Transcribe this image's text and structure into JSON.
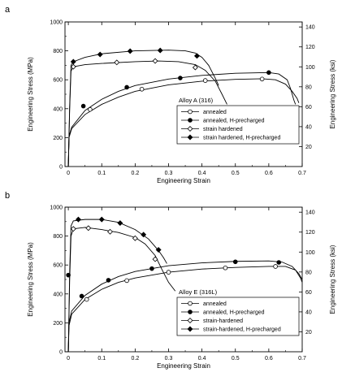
{
  "chart_data": [
    {
      "type": "line",
      "panel_label": "a",
      "xlabel": "Engineering Strain",
      "ylabel": "Engineering Stress (MPa)",
      "y2label": "Engineering Stress (ksi)",
      "xlim": [
        -0.01,
        0.7
      ],
      "ylim": [
        0,
        1000
      ],
      "y2lim": [
        0,
        145.04
      ],
      "xticks": [
        0,
        0.1,
        0.2,
        0.3,
        0.4,
        0.5,
        0.6,
        0.7
      ],
      "yticks": [
        0,
        200,
        400,
        600,
        800,
        1000
      ],
      "y2ticks": [
        20,
        40,
        60,
        80,
        100,
        120,
        140
      ],
      "legend_title": "Alloy A (316)",
      "legend_position": "lower-right",
      "series": [
        {
          "name": "annealed",
          "marker": "open-circle",
          "curve": [
            [
              0,
              0
            ],
            [
              0.002,
              200
            ],
            [
              0.01,
              262
            ],
            [
              0.05,
              360
            ],
            [
              0.1,
              430
            ],
            [
              0.15,
              480
            ],
            [
              0.2,
              520
            ],
            [
              0.3,
              565
            ],
            [
              0.4,
              590
            ],
            [
              0.5,
              603
            ],
            [
              0.58,
              607
            ],
            [
              0.62,
              600
            ],
            [
              0.65,
              570
            ],
            [
              0.67,
              520
            ],
            [
              0.685,
              470
            ],
            [
              0.69,
              440
            ]
          ],
          "markers": [
            [
              0.065,
              395
            ],
            [
              0.22,
              535
            ],
            [
              0.41,
              595
            ],
            [
              0.58,
              605
            ]
          ]
        },
        {
          "name": "annealed, H-precharged",
          "marker": "filled-circle",
          "curve": [
            [
              0,
              0
            ],
            [
              0.002,
              210
            ],
            [
              0.01,
              272
            ],
            [
              0.05,
              388
            ],
            [
              0.1,
              465
            ],
            [
              0.15,
              520
            ],
            [
              0.2,
              560
            ],
            [
              0.3,
              605
            ],
            [
              0.4,
              630
            ],
            [
              0.5,
              645
            ],
            [
              0.6,
              650
            ],
            [
              0.63,
              640
            ],
            [
              0.655,
              600
            ],
            [
              0.665,
              540
            ],
            [
              0.675,
              460
            ],
            [
              0.68,
              430
            ]
          ],
          "markers": [
            [
              0.045,
              418
            ],
            [
              0.175,
              548
            ],
            [
              0.335,
              612
            ],
            [
              0.6,
              650
            ]
          ]
        },
        {
          "name": "strain hardened",
          "marker": "open-diamond",
          "curve": [
            [
              0,
              0
            ],
            [
              0.004,
              400
            ],
            [
              0.008,
              660
            ],
            [
              0.015,
              690
            ],
            [
              0.05,
              705
            ],
            [
              0.1,
              713
            ],
            [
              0.2,
              725
            ],
            [
              0.27,
              730
            ],
            [
              0.33,
              725
            ],
            [
              0.38,
              705
            ],
            [
              0.41,
              665
            ],
            [
              0.44,
              590
            ],
            [
              0.46,
              500
            ],
            [
              0.475,
              430
            ]
          ],
          "markers": [
            [
              0.015,
              690
            ],
            [
              0.145,
              720
            ],
            [
              0.26,
              730
            ],
            [
              0.38,
              685
            ]
          ]
        },
        {
          "name": "strain hardened, H-precharged",
          "marker": "filled-diamond",
          "curve": [
            [
              0,
              0
            ],
            [
              0.004,
              420
            ],
            [
              0.008,
              700
            ],
            [
              0.015,
              725
            ],
            [
              0.05,
              755
            ],
            [
              0.1,
              780
            ],
            [
              0.2,
              800
            ],
            [
              0.3,
              805
            ],
            [
              0.35,
              800
            ],
            [
              0.38,
              785
            ],
            [
              0.4,
              755
            ],
            [
              0.42,
              700
            ],
            [
              0.44,
              610
            ],
            [
              0.45,
              560
            ]
          ],
          "markers": [
            [
              0.015,
              725
            ],
            [
              0.095,
              775
            ],
            [
              0.185,
              798
            ],
            [
              0.275,
              803
            ],
            [
              0.385,
              765
            ]
          ]
        }
      ]
    },
    {
      "type": "line",
      "panel_label": "b",
      "xlabel": "Engineering Strain",
      "ylabel": "Engineering Stress (MPa)",
      "y2label": "Engineering Stress (ksi)",
      "xlim": [
        -0.01,
        0.7
      ],
      "ylim": [
        0,
        1000
      ],
      "y2lim": [
        0,
        145.04
      ],
      "xticks": [
        0,
        0.1,
        0.2,
        0.3,
        0.4,
        0.5,
        0.6,
        0.7
      ],
      "yticks": [
        0,
        200,
        400,
        600,
        800,
        1000
      ],
      "y2ticks": [
        20,
        40,
        60,
        80,
        100,
        120,
        140
      ],
      "legend_title": "Alloy E (316L)",
      "legend_position": "lower-right",
      "series": [
        {
          "name": "annealed",
          "marker": "open-circle",
          "curve": [
            [
              0,
              0
            ],
            [
              0.002,
              180
            ],
            [
              0.01,
              260
            ],
            [
              0.05,
              362
            ],
            [
              0.1,
              432
            ],
            [
              0.15,
              480
            ],
            [
              0.2,
              510
            ],
            [
              0.3,
              550
            ],
            [
              0.4,
              572
            ],
            [
              0.5,
              583
            ],
            [
              0.6,
              590
            ],
            [
              0.65,
              590
            ],
            [
              0.68,
              565
            ],
            [
              0.695,
              510
            ],
            [
              0.7,
              480
            ]
          ],
          "markers": [
            [
              0.055,
              362
            ],
            [
              0.175,
              492
            ],
            [
              0.3,
              550
            ],
            [
              0.47,
              580
            ],
            [
              0.62,
              590
            ]
          ]
        },
        {
          "name": "annealed, H-precharged",
          "marker": "filled-circle",
          "curve": [
            [
              0,
              0
            ],
            [
              0.002,
              200
            ],
            [
              0.01,
              282
            ],
            [
              0.05,
              390
            ],
            [
              0.1,
              468
            ],
            [
              0.15,
              520
            ],
            [
              0.2,
              555
            ],
            [
              0.3,
              595
            ],
            [
              0.4,
              615
            ],
            [
              0.5,
              625
            ],
            [
              0.6,
              628
            ],
            [
              0.64,
              620
            ],
            [
              0.67,
              590
            ],
            [
              0.69,
              540
            ],
            [
              0.7,
              500
            ]
          ],
          "markers": [
            [
              0,
              530
            ],
            [
              0.04,
              385
            ],
            [
              0.12,
              495
            ],
            [
              0.25,
              575
            ],
            [
              0.5,
              622
            ],
            [
              0.63,
              618
            ]
          ]
        },
        {
          "name": "strain-hardened",
          "marker": "open-diamond",
          "curve": [
            [
              0,
              0
            ],
            [
              0.004,
              500
            ],
            [
              0.008,
              800
            ],
            [
              0.015,
              850
            ],
            [
              0.05,
              860
            ],
            [
              0.1,
              845
            ],
            [
              0.15,
              825
            ],
            [
              0.2,
              790
            ],
            [
              0.23,
              745
            ],
            [
              0.26,
              665
            ],
            [
              0.28,
              570
            ],
            [
              0.3,
              480
            ],
            [
              0.32,
              420
            ]
          ],
          "markers": [
            [
              0.015,
              850
            ],
            [
              0.06,
              855
            ],
            [
              0.125,
              830
            ],
            [
              0.2,
              785
            ],
            [
              0.26,
              640
            ]
          ]
        },
        {
          "name": "strain-hardened, H-precharged",
          "marker": "filled-diamond",
          "curve": [
            [
              0,
              0
            ],
            [
              0.004,
              550
            ],
            [
              0.008,
              870
            ],
            [
              0.015,
              905
            ],
            [
              0.05,
              915
            ],
            [
              0.1,
              915
            ],
            [
              0.15,
              895
            ],
            [
              0.2,
              845
            ],
            [
              0.24,
              780
            ],
            [
              0.27,
              700
            ],
            [
              0.285,
              650
            ],
            [
              0.295,
              610
            ]
          ],
          "markers": [
            [
              0.03,
              915
            ],
            [
              0.1,
              915
            ],
            [
              0.155,
              890
            ],
            [
              0.225,
              810
            ],
            [
              0.27,
              705
            ]
          ]
        }
      ]
    }
  ]
}
